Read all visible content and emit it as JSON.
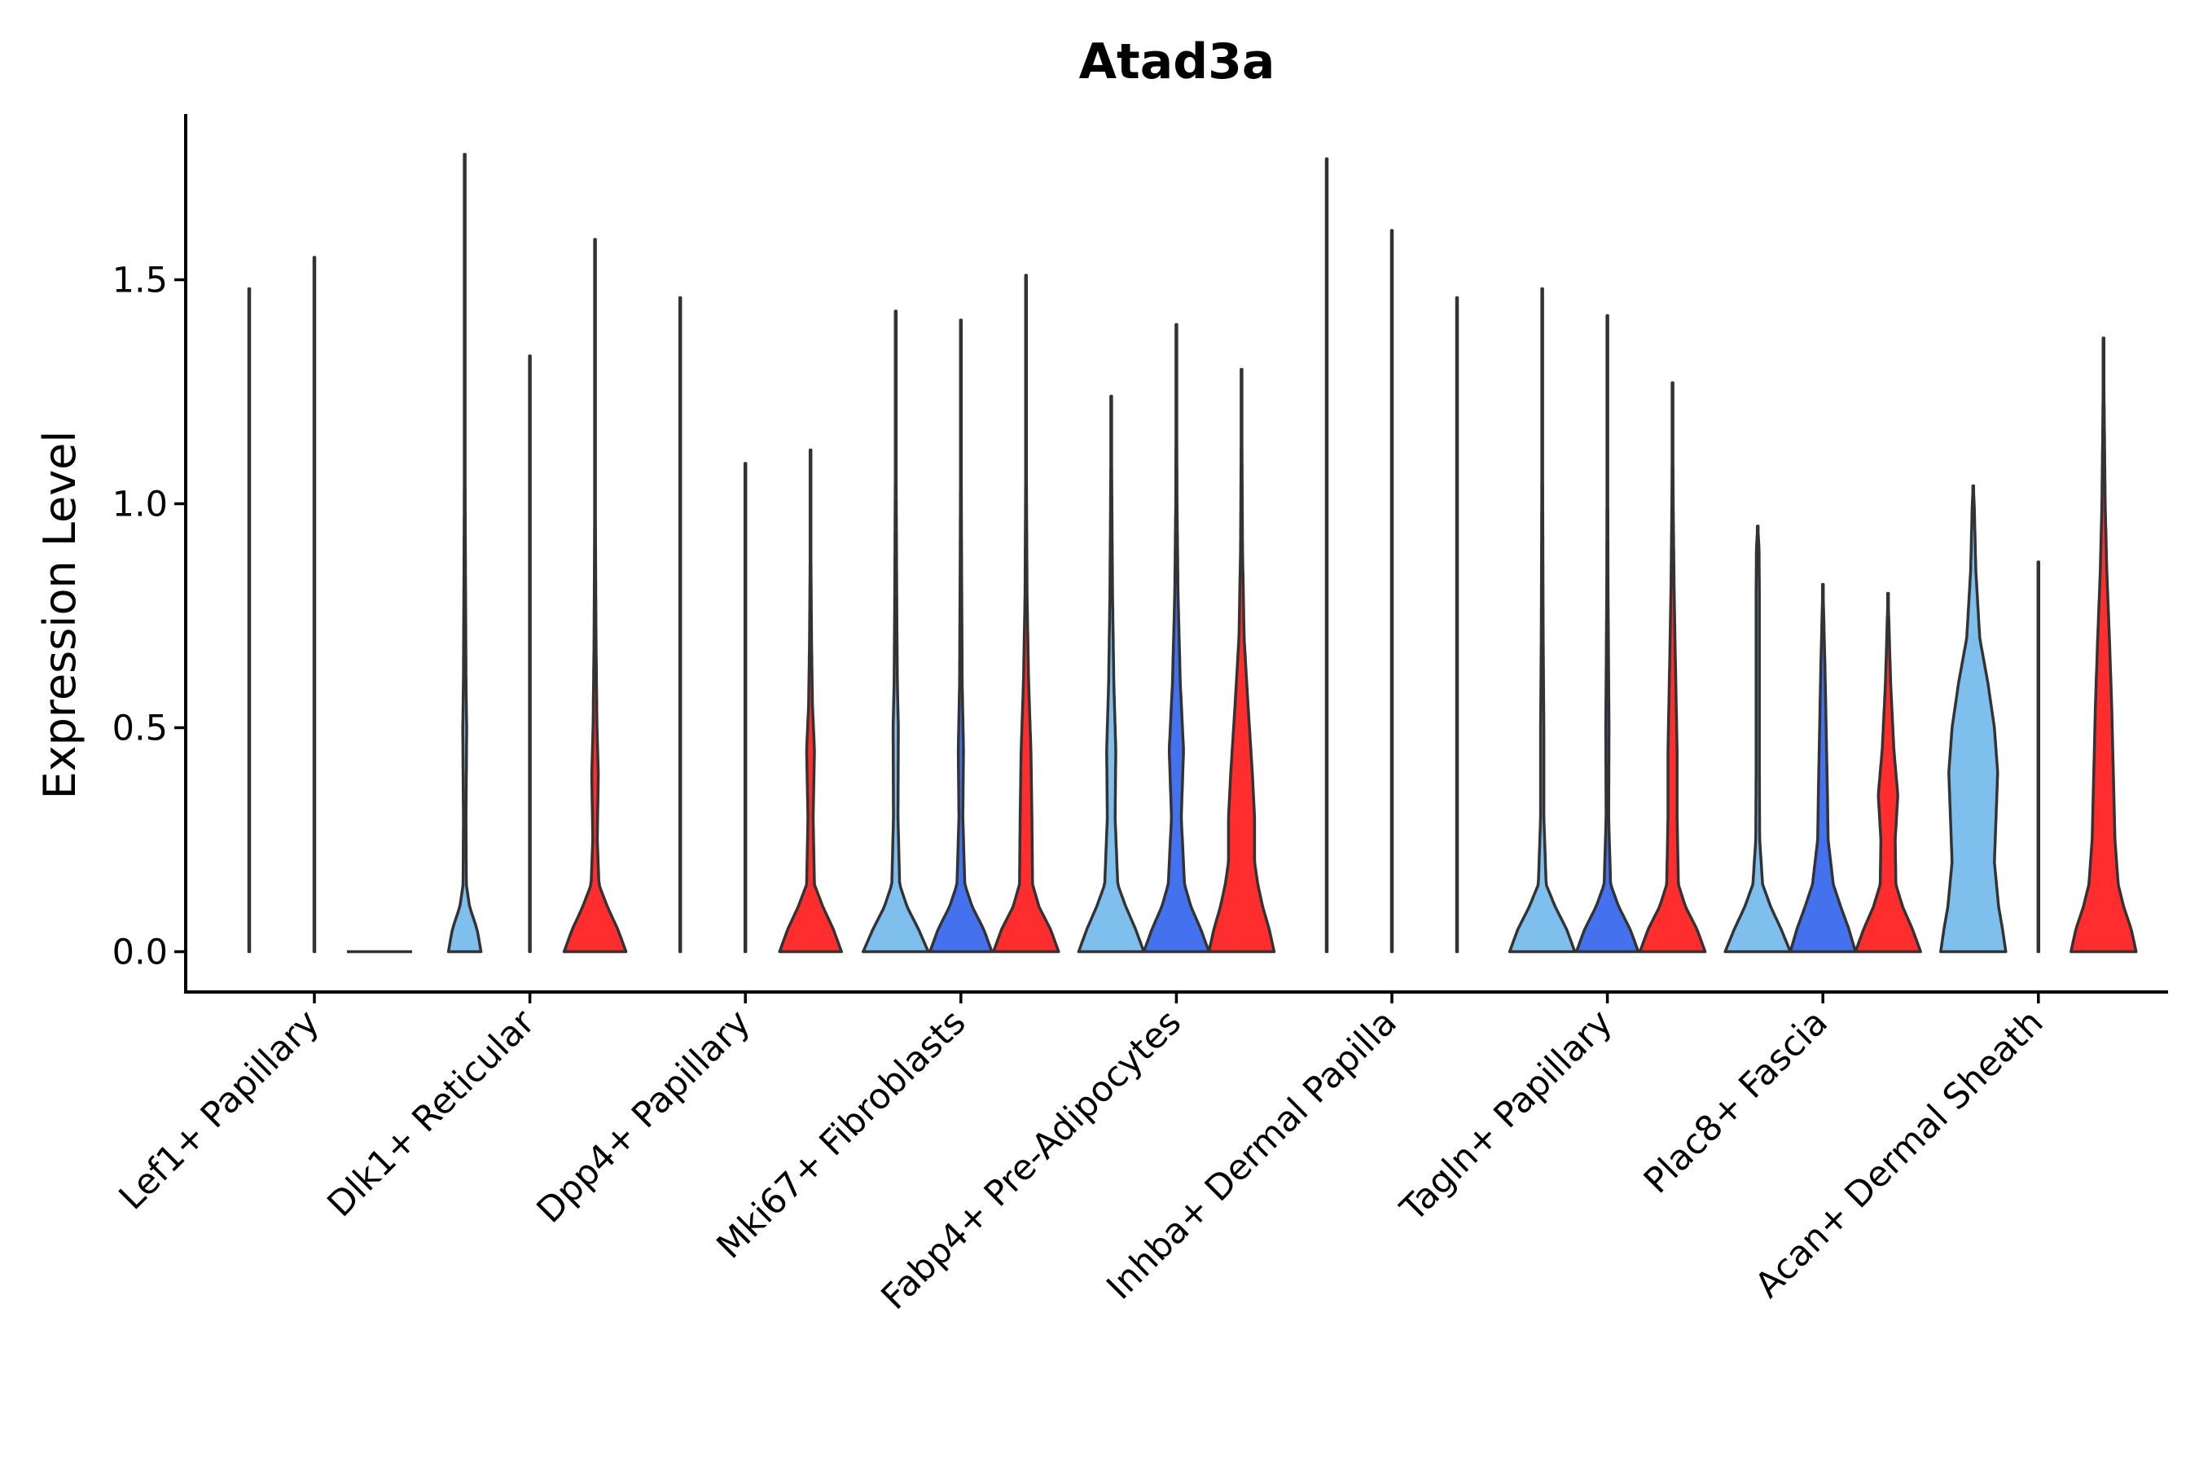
{
  "chart_data": {
    "type": "violin",
    "title": "Atad3a",
    "xlabel": "",
    "ylabel": "Expression Level",
    "ylim": [
      -0.09,
      1.87
    ],
    "yticks": [
      "0.0",
      "0.5",
      "1.0",
      "1.5"
    ],
    "ytick_values": [
      0.0,
      0.5,
      1.0,
      1.5
    ],
    "grid": false,
    "legend": "none",
    "series_colors": [
      "#7fbfee",
      "#4472ee",
      "#ff2d2d"
    ],
    "categories": [
      "Lef1+ Papillary",
      "Dlk1+ Reticular",
      "Dpp4+ Papillary",
      "Mki67+ Fibroblasts",
      "Fabp4+ Pre-Adipocytes",
      "Inhba+ Dermal Papilla",
      "Tagln+ Papillary",
      "Plac8+ Fascia",
      "Acan+ Dermal Sheath"
    ],
    "violins": [
      [
        {
          "max": 1.48,
          "profile": [
            [
              0,
              0.008
            ],
            [
              1.48,
              0
            ]
          ]
        },
        {
          "max": 1.55,
          "profile": [
            [
              0,
              0.008
            ],
            [
              1.55,
              0
            ]
          ]
        },
        {
          "max": 0.0,
          "profile": [
            [
              0,
              0
            ]
          ]
        }
      ],
      [
        {
          "max": 1.78,
          "profile": [
            [
              0,
              0.5
            ],
            [
              0.05,
              0.38
            ],
            [
              0.1,
              0.15
            ],
            [
              0.15,
              0.05
            ],
            [
              0.3,
              0.04
            ],
            [
              0.5,
              0.06
            ],
            [
              0.6,
              0.04
            ],
            [
              0.9,
              0.02
            ],
            [
              1.2,
              0.005
            ],
            [
              1.78,
              0
            ]
          ]
        },
        {
          "max": 1.33,
          "profile": [
            [
              0,
              0.008
            ],
            [
              1.33,
              0
            ]
          ]
        },
        {
          "max": 1.59,
          "profile": [
            [
              0,
              0.95
            ],
            [
              0.05,
              0.7
            ],
            [
              0.1,
              0.38
            ],
            [
              0.15,
              0.12
            ],
            [
              0.25,
              0.07
            ],
            [
              0.4,
              0.1
            ],
            [
              0.5,
              0.06
            ],
            [
              0.7,
              0.03
            ],
            [
              1.0,
              0.01
            ],
            [
              1.59,
              0
            ]
          ]
        }
      ],
      [
        {
          "max": 1.46,
          "profile": [
            [
              0,
              0.008
            ],
            [
              1.46,
              0
            ]
          ]
        },
        {
          "max": 1.09,
          "profile": [
            [
              0,
              0.008
            ],
            [
              1.09,
              0
            ]
          ]
        },
        {
          "max": 1.12,
          "profile": [
            [
              0,
              0.95
            ],
            [
              0.05,
              0.7
            ],
            [
              0.1,
              0.38
            ],
            [
              0.15,
              0.12
            ],
            [
              0.3,
              0.08
            ],
            [
              0.45,
              0.12
            ],
            [
              0.55,
              0.06
            ],
            [
              0.7,
              0.03
            ],
            [
              0.9,
              0.01
            ],
            [
              1.12,
              0
            ]
          ]
        }
      ],
      [
        {
          "max": 1.43,
          "profile": [
            [
              0,
              1.0
            ],
            [
              0.05,
              0.7
            ],
            [
              0.1,
              0.35
            ],
            [
              0.15,
              0.12
            ],
            [
              0.3,
              0.07
            ],
            [
              0.5,
              0.08
            ],
            [
              0.6,
              0.05
            ],
            [
              0.8,
              0.03
            ],
            [
              1.1,
              0.01
            ],
            [
              1.43,
              0
            ]
          ]
        },
        {
          "max": 1.41,
          "profile": [
            [
              0,
              0.95
            ],
            [
              0.05,
              0.7
            ],
            [
              0.1,
              0.35
            ],
            [
              0.15,
              0.12
            ],
            [
              0.3,
              0.06
            ],
            [
              0.45,
              0.08
            ],
            [
              0.6,
              0.04
            ],
            [
              0.9,
              0.02
            ],
            [
              1.2,
              0.005
            ],
            [
              1.41,
              0
            ]
          ]
        },
        {
          "max": 1.51,
          "profile": [
            [
              0,
              1.0
            ],
            [
              0.05,
              0.75
            ],
            [
              0.1,
              0.4
            ],
            [
              0.15,
              0.2
            ],
            [
              0.3,
              0.18
            ],
            [
              0.45,
              0.15
            ],
            [
              0.6,
              0.08
            ],
            [
              0.8,
              0.03
            ],
            [
              1.1,
              0.01
            ],
            [
              1.51,
              0
            ]
          ]
        }
      ],
      [
        {
          "max": 1.24,
          "profile": [
            [
              0,
              1.0
            ],
            [
              0.05,
              0.75
            ],
            [
              0.1,
              0.45
            ],
            [
              0.15,
              0.2
            ],
            [
              0.3,
              0.12
            ],
            [
              0.45,
              0.14
            ],
            [
              0.6,
              0.08
            ],
            [
              0.8,
              0.04
            ],
            [
              1.0,
              0.02
            ],
            [
              1.24,
              0
            ]
          ]
        },
        {
          "max": 1.4,
          "profile": [
            [
              0,
              1.0
            ],
            [
              0.05,
              0.75
            ],
            [
              0.1,
              0.45
            ],
            [
              0.15,
              0.25
            ],
            [
              0.3,
              0.15
            ],
            [
              0.45,
              0.22
            ],
            [
              0.6,
              0.12
            ],
            [
              0.8,
              0.05
            ],
            [
              1.0,
              0.02
            ],
            [
              1.4,
              0
            ]
          ]
        },
        {
          "max": 1.3,
          "profile": [
            [
              0,
              1.0
            ],
            [
              0.05,
              0.85
            ],
            [
              0.1,
              0.65
            ],
            [
              0.15,
              0.5
            ],
            [
              0.2,
              0.4
            ],
            [
              0.3,
              0.4
            ],
            [
              0.4,
              0.33
            ],
            [
              0.55,
              0.2
            ],
            [
              0.7,
              0.08
            ],
            [
              0.9,
              0.03
            ],
            [
              1.3,
              0
            ]
          ]
        }
      ],
      [
        {
          "max": 1.77,
          "profile": [
            [
              0,
              0.008
            ],
            [
              1.77,
              0
            ]
          ]
        },
        {
          "max": 1.61,
          "profile": [
            [
              0,
              0.008
            ],
            [
              1.61,
              0
            ]
          ]
        },
        {
          "max": 1.46,
          "profile": [
            [
              0,
              0.008
            ],
            [
              1.46,
              0
            ]
          ]
        }
      ],
      [
        {
          "max": 1.48,
          "profile": [
            [
              0,
              1.0
            ],
            [
              0.05,
              0.75
            ],
            [
              0.1,
              0.4
            ],
            [
              0.15,
              0.12
            ],
            [
              0.3,
              0.05
            ],
            [
              0.5,
              0.05
            ],
            [
              0.7,
              0.03
            ],
            [
              1.0,
              0.015
            ],
            [
              1.48,
              0
            ]
          ]
        },
        {
          "max": 1.42,
          "profile": [
            [
              0,
              0.95
            ],
            [
              0.05,
              0.7
            ],
            [
              0.1,
              0.35
            ],
            [
              0.15,
              0.1
            ],
            [
              0.3,
              0.04
            ],
            [
              0.5,
              0.05
            ],
            [
              0.8,
              0.02
            ],
            [
              1.42,
              0
            ]
          ]
        },
        {
          "max": 1.27,
          "profile": [
            [
              0,
              1.0
            ],
            [
              0.05,
              0.75
            ],
            [
              0.1,
              0.4
            ],
            [
              0.15,
              0.18
            ],
            [
              0.3,
              0.14
            ],
            [
              0.45,
              0.14
            ],
            [
              0.6,
              0.1
            ],
            [
              0.8,
              0.05
            ],
            [
              1.0,
              0.02
            ],
            [
              1.27,
              0
            ]
          ]
        }
      ],
      [
        {
          "max": 0.95,
          "profile": [
            [
              0,
              1.0
            ],
            [
              0.05,
              0.72
            ],
            [
              0.1,
              0.4
            ],
            [
              0.15,
              0.15
            ],
            [
              0.25,
              0.06
            ],
            [
              0.4,
              0.05
            ],
            [
              0.6,
              0.05
            ],
            [
              0.8,
              0.05
            ],
            [
              0.9,
              0.04
            ],
            [
              0.95,
              0
            ]
          ]
        },
        {
          "max": 0.82,
          "profile": [
            [
              0,
              1.0
            ],
            [
              0.05,
              0.8
            ],
            [
              0.1,
              0.55
            ],
            [
              0.15,
              0.32
            ],
            [
              0.25,
              0.16
            ],
            [
              0.35,
              0.14
            ],
            [
              0.5,
              0.1
            ],
            [
              0.65,
              0.06
            ],
            [
              0.82,
              0
            ]
          ]
        },
        {
          "max": 0.8,
          "profile": [
            [
              0,
              1.0
            ],
            [
              0.05,
              0.75
            ],
            [
              0.1,
              0.45
            ],
            [
              0.15,
              0.24
            ],
            [
              0.25,
              0.22
            ],
            [
              0.35,
              0.3
            ],
            [
              0.45,
              0.18
            ],
            [
              0.6,
              0.08
            ],
            [
              0.8,
              0
            ]
          ]
        }
      ],
      [
        {
          "max": 1.04,
          "profile": [
            [
              0,
              1.0
            ],
            [
              0.05,
              0.9
            ],
            [
              0.1,
              0.78
            ],
            [
              0.2,
              0.65
            ],
            [
              0.3,
              0.7
            ],
            [
              0.4,
              0.75
            ],
            [
              0.5,
              0.65
            ],
            [
              0.6,
              0.45
            ],
            [
              0.7,
              0.2
            ],
            [
              0.85,
              0.08
            ],
            [
              1.0,
              0.03
            ],
            [
              1.04,
              0
            ]
          ]
        },
        {
          "max": 0.87,
          "profile": [
            [
              0,
              0.008
            ],
            [
              0.87,
              0
            ]
          ]
        },
        {
          "max": 1.37,
          "profile": [
            [
              0,
              1.0
            ],
            [
              0.05,
              0.85
            ],
            [
              0.1,
              0.62
            ],
            [
              0.15,
              0.45
            ],
            [
              0.25,
              0.35
            ],
            [
              0.4,
              0.3
            ],
            [
              0.55,
              0.25
            ],
            [
              0.7,
              0.18
            ],
            [
              0.85,
              0.1
            ],
            [
              1.0,
              0.05
            ],
            [
              1.2,
              0.02
            ],
            [
              1.37,
              0
            ]
          ]
        }
      ]
    ]
  }
}
